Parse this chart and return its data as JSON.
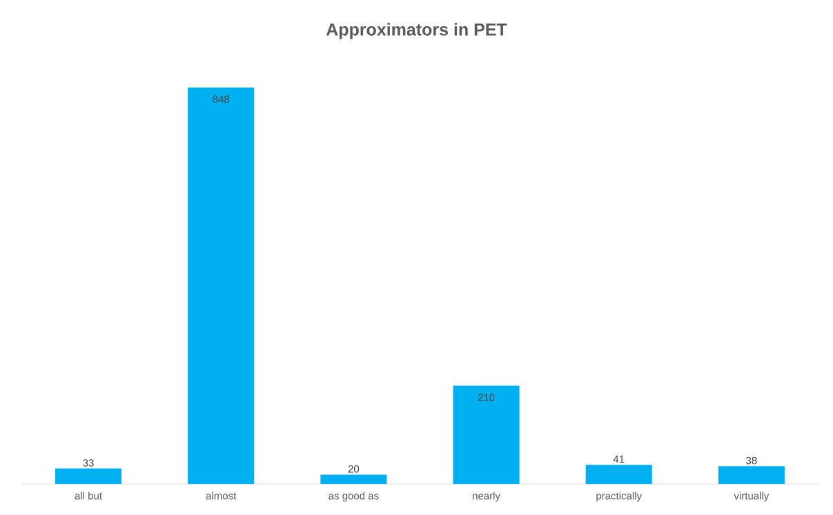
{
  "chart_data": {
    "type": "bar",
    "title": "Approximators in PET",
    "categories": [
      "all but",
      "almost",
      "as good as",
      "nearly",
      "practically",
      "virtually"
    ],
    "values": [
      33,
      848,
      20,
      210,
      41,
      38
    ],
    "color": "#00b0f0",
    "data_labels": true
  }
}
